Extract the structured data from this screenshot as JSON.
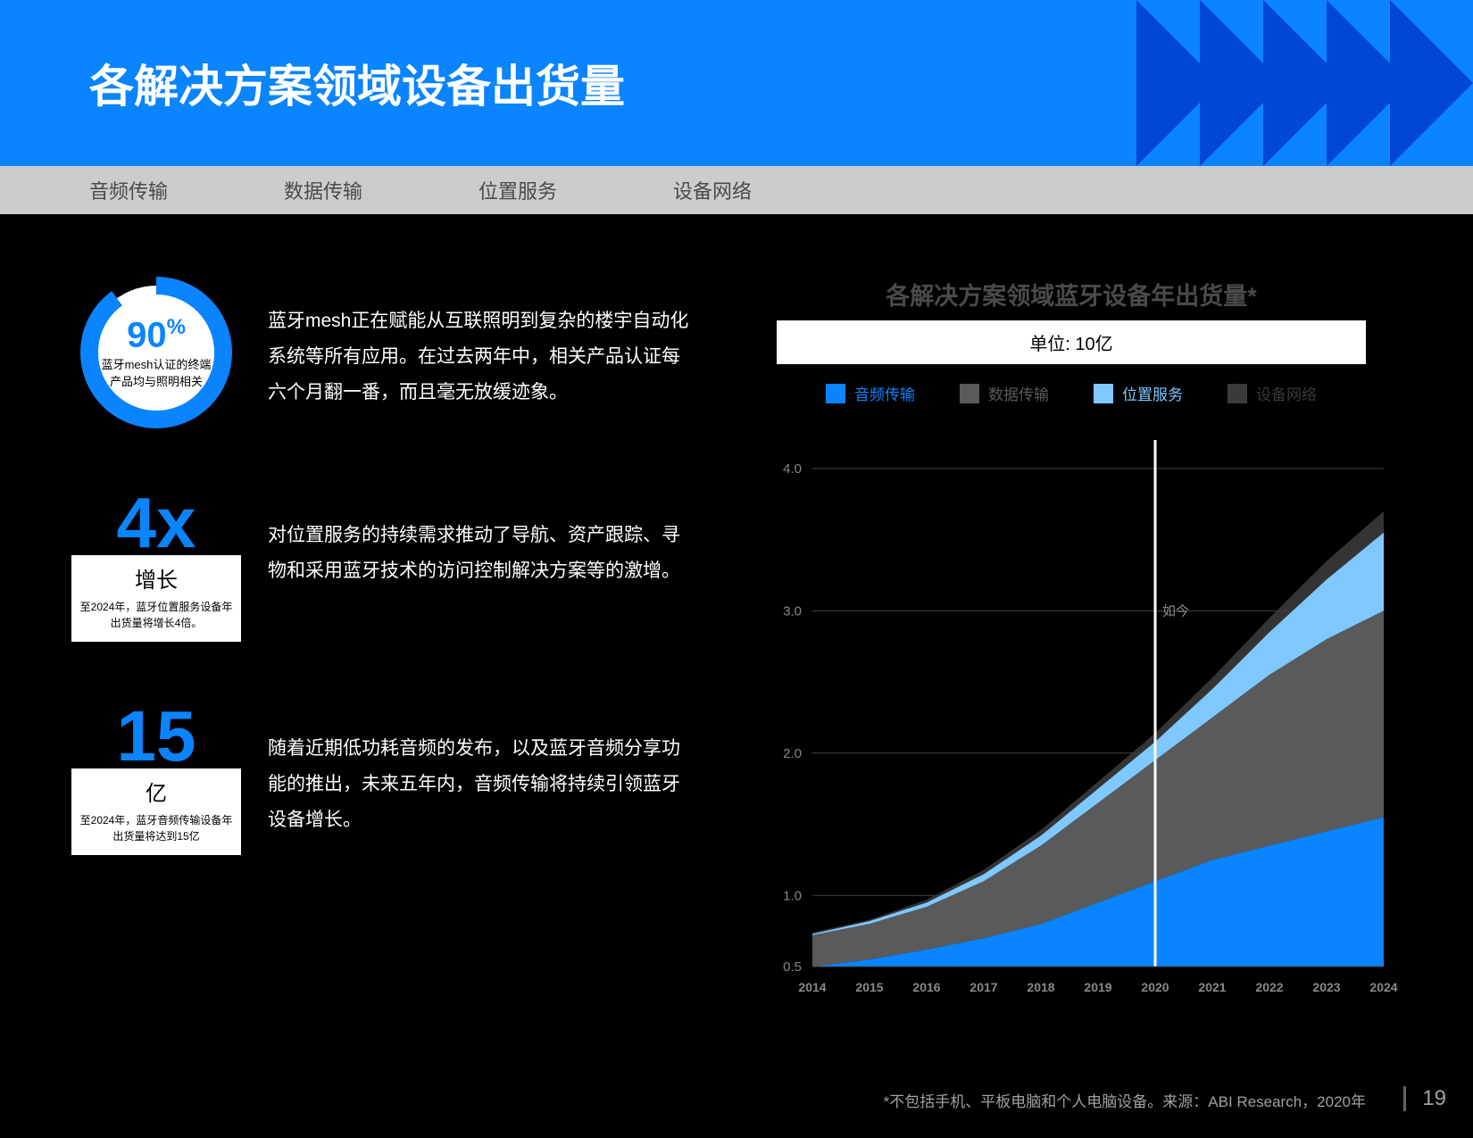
{
  "colors": {
    "header_bg": "#0a84ff",
    "triangle": "#0047d4",
    "tab_bg": "#cccccc",
    "accent": "#0a84ff",
    "light_blue": "#7ec8ff",
    "gray_series": "#5a5a5a",
    "dark_gray_series": "#3a3a3a",
    "grid": "#444444",
    "axis_text": "#888888",
    "white": "#ffffff",
    "footnote": "#a0a0a0"
  },
  "header": {
    "title": "各解决方案领域设备出货量"
  },
  "tabs": [
    "音频传输",
    "数据传输",
    "位置服务",
    "设备网络"
  ],
  "stats": {
    "donut": {
      "percent": "90",
      "percent_suffix": "%",
      "label": "蓝牙mesh认证的终端产品均与照明相关",
      "fill_pct": 90,
      "text": "蓝牙mesh正在赋能从互联照明到复杂的楼宇自动化系统等所有应用。在过去两年中，相关产品认证每六个月翻一番，而且毫无放缓迹象。"
    },
    "fourx": {
      "big": "4x",
      "growth_label": "增长",
      "small": "至2024年，蓝牙位置服务设备年出货量将增长4倍。",
      "text": "对位置服务的持续需求推动了导航、资产跟踪、寻物和采用蓝牙技术的访问控制解决方案等的激增。"
    },
    "fifteen": {
      "big": "15",
      "unit": "亿",
      "small": "至2024年，蓝牙音频传输设备年出货量将达到15亿",
      "text": "随着近期低功耗音频的发布，以及蓝牙音频分享功能的推出，未来五年内，音频传输将持续引领蓝牙设备增长。"
    }
  },
  "chart": {
    "title": "各解决方案领域蓝牙设备年出货量*",
    "unit": "单位: 10亿",
    "legend": [
      {
        "label": "音频传输",
        "color": "#0a84ff"
      },
      {
        "label": "数据传输",
        "color": "#5a5a5a"
      },
      {
        "label": "位置服务",
        "color": "#7ec8ff"
      },
      {
        "label": "设备网络",
        "color": "#3a3a3a"
      }
    ],
    "years": [
      "2014",
      "2015",
      "2016",
      "2017",
      "2018",
      "2019",
      "2020",
      "2021",
      "2022",
      "2023",
      "2024"
    ],
    "y_ticks": [
      "0.5",
      "1.0",
      "2.0",
      "3.0",
      "4.0"
    ],
    "y_min": 0.5,
    "y_max": 4.2,
    "now_label": "如今",
    "now_index": 6,
    "series": {
      "audio": [
        0.5,
        0.55,
        0.62,
        0.7,
        0.8,
        0.95,
        1.1,
        1.25,
        1.35,
        1.45,
        1.55
      ],
      "data": [
        0.72,
        0.8,
        0.92,
        1.1,
        1.35,
        1.65,
        1.95,
        2.25,
        2.55,
        2.8,
        3.0
      ],
      "location": [
        0.73,
        0.82,
        0.95,
        1.15,
        1.42,
        1.75,
        2.08,
        2.45,
        2.85,
        3.22,
        3.55
      ],
      "network": [
        0.74,
        0.83,
        0.97,
        1.18,
        1.46,
        1.8,
        2.14,
        2.53,
        2.95,
        3.35,
        3.7
      ]
    }
  },
  "footnote": "*不包括手机、平板电脑和个人电脑设备。来源：ABI Research，2020年",
  "page": "19"
}
